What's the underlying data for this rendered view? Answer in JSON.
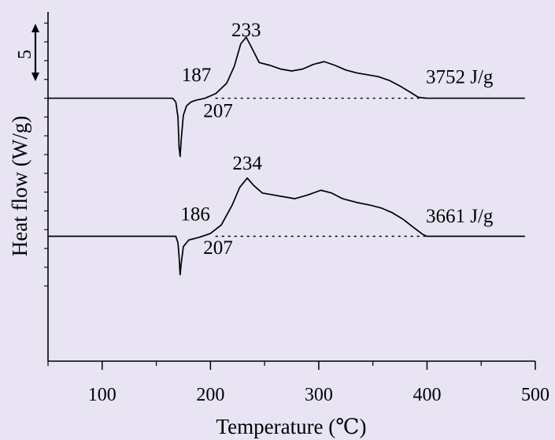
{
  "chart_data": {
    "type": "line",
    "xlabel": "Temperature (℃)",
    "ylabel": "Heat flow (W/g)",
    "xlim": [
      50,
      500
    ],
    "xticks": [
      100,
      200,
      300,
      400,
      500
    ],
    "yticks_labeled": [],
    "scale_bar_label": "5",
    "grid": false,
    "legend": "none",
    "colors": {
      "background": "#e8e4f3",
      "line": "#000000"
    },
    "series": [
      {
        "baseline_style": "dotted",
        "points": [
          [
            50,
            0.0
          ],
          [
            165,
            0.0
          ],
          [
            168,
            -0.2
          ],
          [
            170,
            -1.0
          ],
          [
            171,
            -2.6
          ],
          [
            172,
            -3.1
          ],
          [
            173,
            -2.2
          ],
          [
            175,
            -0.9
          ],
          [
            178,
            -0.4
          ],
          [
            182,
            -0.2
          ],
          [
            187,
            -0.1
          ],
          [
            195,
            0.0
          ],
          [
            205,
            0.25
          ],
          [
            215,
            0.8
          ],
          [
            222,
            1.7
          ],
          [
            228,
            2.9
          ],
          [
            233,
            3.25
          ],
          [
            238,
            2.7
          ],
          [
            245,
            1.9
          ],
          [
            255,
            1.75
          ],
          [
            265,
            1.55
          ],
          [
            275,
            1.45
          ],
          [
            285,
            1.55
          ],
          [
            295,
            1.8
          ],
          [
            305,
            1.95
          ],
          [
            315,
            1.75
          ],
          [
            325,
            1.5
          ],
          [
            335,
            1.35
          ],
          [
            345,
            1.25
          ],
          [
            355,
            1.15
          ],
          [
            365,
            0.95
          ],
          [
            375,
            0.65
          ],
          [
            385,
            0.3
          ],
          [
            392,
            0.05
          ],
          [
            400,
            0.0
          ],
          [
            490,
            0.0
          ]
        ],
        "baseline_dotted": [
          [
            205,
            0.0
          ],
          [
            400,
            0.0
          ]
        ],
        "annotations": [
          {
            "text": "187",
            "x": 187,
            "y": 0.9
          },
          {
            "text": "207",
            "x": 207,
            "y": -1.0
          },
          {
            "text": "233",
            "x": 233,
            "y": 3.3
          },
          {
            "text": "3752 J/g",
            "x": 430,
            "y": 0.8
          }
        ]
      },
      {
        "baseline_style": "dotted",
        "points": [
          [
            50,
            -7.35
          ],
          [
            168,
            -7.35
          ],
          [
            170,
            -7.7
          ],
          [
            171,
            -8.4
          ],
          [
            172,
            -9.4
          ],
          [
            173,
            -8.8
          ],
          [
            175,
            -7.9
          ],
          [
            180,
            -7.55
          ],
          [
            190,
            -7.4
          ],
          [
            200,
            -7.2
          ],
          [
            210,
            -6.75
          ],
          [
            220,
            -5.7
          ],
          [
            227,
            -4.75
          ],
          [
            234,
            -4.25
          ],
          [
            240,
            -4.65
          ],
          [
            248,
            -5.05
          ],
          [
            258,
            -5.15
          ],
          [
            268,
            -5.25
          ],
          [
            278,
            -5.35
          ],
          [
            290,
            -5.15
          ],
          [
            302,
            -4.9
          ],
          [
            312,
            -5.05
          ],
          [
            322,
            -5.35
          ],
          [
            335,
            -5.55
          ],
          [
            348,
            -5.7
          ],
          [
            358,
            -5.85
          ],
          [
            368,
            -6.1
          ],
          [
            378,
            -6.45
          ],
          [
            388,
            -6.9
          ],
          [
            396,
            -7.25
          ],
          [
            400,
            -7.35
          ],
          [
            490,
            -7.35
          ]
        ],
        "baseline_dotted": [
          [
            205,
            -7.35
          ],
          [
            400,
            -7.35
          ]
        ],
        "annotations": [
          {
            "text": "186",
            "x": 186,
            "y": -6.5
          },
          {
            "text": "207",
            "x": 207,
            "y": -8.3
          },
          {
            "text": "234",
            "x": 234,
            "y": -3.8
          },
          {
            "text": "3661 J/g",
            "x": 430,
            "y": -6.6
          }
        ]
      }
    ]
  }
}
